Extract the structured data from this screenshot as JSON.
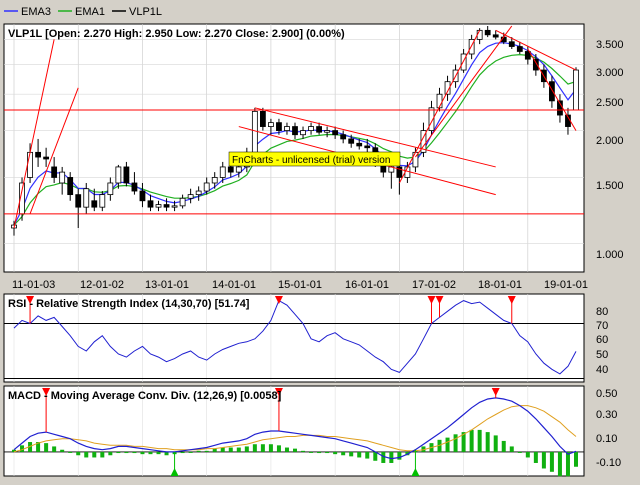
{
  "legend": [
    {
      "label": "EMA3",
      "color": "#3030ff"
    },
    {
      "label": "EMA1",
      "color": "#20b020"
    },
    {
      "label": "VLP1L",
      "color": "#000000"
    }
  ],
  "price_panel": {
    "title": "VLP1L [Open: 2.270  High: 2.950  Low: 2.270  Close: 2.900] (0.00%)",
    "y_ticks": [
      "3.500",
      "3.000",
      "2.500",
      "2.000",
      "1.500",
      "1.000"
    ],
    "x_ticks": [
      "11-01-03",
      "12-01-02",
      "13-01-01",
      "14-01-01",
      "15-01-01",
      "16-01-01",
      "17-01-02",
      "18-01-01",
      "19-01-01"
    ],
    "watermark": "FnCharts - unlicensed (trial) version"
  },
  "rsi_panel": {
    "title": "RSI - Relative Strength Index (14,30,70) [51.74]",
    "y_ticks": [
      "80",
      "70",
      "60",
      "50",
      "40"
    ]
  },
  "macd_panel": {
    "title": "MACD - Moving Average Conv. Div. (12,26,9) [0.0058]",
    "y_ticks": [
      "0.50",
      "0.30",
      "0.10",
      "-0.10"
    ]
  },
  "colors": {
    "ema3": "#3030ff",
    "ema1": "#20b020",
    "trendline": "#ff0000",
    "macd_line": "#2020d0",
    "signal_line": "#e0a020",
    "histogram": "#10b010",
    "rsi_line": "#2020d0",
    "watermark_bg": "#ffff00"
  },
  "chart_data": [
    {
      "type": "candlestick",
      "title": "VLP1L",
      "x": [
        "11-01-03",
        "12-01-02",
        "13-01-01",
        "14-01-01",
        "15-01-01",
        "16-01-01",
        "17-01-02",
        "18-01-01",
        "19-01-01"
      ],
      "ylim": [
        0.85,
        3.8
      ],
      "scale": "log",
      "candles": [
        [
          1.1,
          1.15,
          1.05,
          1.12
        ],
        [
          1.2,
          1.5,
          1.15,
          1.45
        ],
        [
          1.5,
          1.85,
          1.45,
          1.75
        ],
        [
          1.75,
          1.9,
          1.6,
          1.7
        ],
        [
          1.7,
          1.8,
          1.6,
          1.68
        ],
        [
          1.6,
          1.7,
          1.45,
          1.5
        ],
        [
          1.45,
          1.6,
          1.35,
          1.55
        ],
        [
          1.5,
          1.55,
          1.3,
          1.35
        ],
        [
          1.35,
          1.4,
          1.1,
          1.25
        ],
        [
          1.25,
          1.45,
          1.2,
          1.4
        ],
        [
          1.3,
          1.4,
          1.22,
          1.25
        ],
        [
          1.25,
          1.38,
          1.22,
          1.35
        ],
        [
          1.35,
          1.5,
          1.3,
          1.45
        ],
        [
          1.45,
          1.62,
          1.4,
          1.6
        ],
        [
          1.6,
          1.65,
          1.42,
          1.45
        ],
        [
          1.45,
          1.55,
          1.35,
          1.38
        ],
        [
          1.38,
          1.45,
          1.25,
          1.3
        ],
        [
          1.3,
          1.35,
          1.22,
          1.25
        ],
        [
          1.25,
          1.3,
          1.22,
          1.27
        ],
        [
          1.27,
          1.32,
          1.22,
          1.25
        ],
        [
          1.25,
          1.3,
          1.22,
          1.26
        ],
        [
          1.26,
          1.35,
          1.24,
          1.32
        ],
        [
          1.32,
          1.4,
          1.28,
          1.35
        ],
        [
          1.35,
          1.42,
          1.3,
          1.38
        ],
        [
          1.38,
          1.5,
          1.35,
          1.45
        ],
        [
          1.45,
          1.55,
          1.4,
          1.5
        ],
        [
          1.5,
          1.65,
          1.45,
          1.6
        ],
        [
          1.6,
          1.7,
          1.5,
          1.55
        ],
        [
          1.55,
          1.65,
          1.5,
          1.6
        ],
        [
          1.6,
          1.8,
          1.55,
          1.75
        ],
        [
          1.75,
          2.3,
          1.7,
          2.25
        ],
        [
          2.25,
          2.3,
          2.0,
          2.05
        ],
        [
          2.05,
          2.15,
          1.95,
          2.1
        ],
        [
          2.1,
          2.15,
          1.95,
          2.0
        ],
        [
          2.0,
          2.1,
          1.95,
          2.05
        ],
        [
          2.05,
          2.1,
          1.9,
          1.95
        ],
        [
          1.95,
          2.05,
          1.9,
          2.0
        ],
        [
          2.0,
          2.1,
          1.95,
          2.05
        ],
        [
          2.05,
          2.1,
          1.95,
          1.98
        ],
        [
          1.98,
          2.05,
          1.92,
          2.0
        ],
        [
          2.0,
          2.05,
          1.9,
          1.95
        ],
        [
          1.95,
          2.0,
          1.85,
          1.9
        ],
        [
          1.9,
          1.95,
          1.8,
          1.85
        ],
        [
          1.85,
          1.9,
          1.78,
          1.82
        ],
        [
          1.82,
          1.9,
          1.75,
          1.8
        ],
        [
          1.8,
          1.85,
          1.6,
          1.65
        ],
        [
          1.65,
          1.7,
          1.5,
          1.55
        ],
        [
          1.55,
          1.65,
          1.4,
          1.6
        ],
        [
          1.6,
          1.7,
          1.35,
          1.5
        ],
        [
          1.5,
          1.65,
          1.45,
          1.6
        ],
        [
          1.6,
          1.8,
          1.55,
          1.75
        ],
        [
          1.75,
          2.1,
          1.7,
          2.0
        ],
        [
          2.0,
          2.4,
          1.95,
          2.3
        ],
        [
          2.3,
          2.6,
          2.25,
          2.5
        ],
        [
          2.5,
          2.8,
          2.4,
          2.7
        ],
        [
          2.7,
          3.0,
          2.6,
          2.9
        ],
        [
          2.9,
          3.3,
          2.85,
          3.2
        ],
        [
          3.2,
          3.6,
          3.1,
          3.5
        ],
        [
          3.5,
          3.75,
          3.4,
          3.7
        ],
        [
          3.7,
          3.8,
          3.55,
          3.6
        ],
        [
          3.6,
          3.7,
          3.5,
          3.55
        ],
        [
          3.55,
          3.65,
          3.4,
          3.45
        ],
        [
          3.45,
          3.55,
          3.3,
          3.35
        ],
        [
          3.35,
          3.45,
          3.2,
          3.25
        ],
        [
          3.25,
          3.35,
          3.0,
          3.1
        ],
        [
          3.1,
          3.2,
          2.8,
          2.9
        ],
        [
          2.9,
          3.0,
          2.6,
          2.7
        ],
        [
          2.7,
          2.8,
          2.3,
          2.4
        ],
        [
          2.4,
          2.5,
          2.1,
          2.2
        ],
        [
          2.2,
          2.3,
          1.95,
          2.05
        ],
        [
          2.27,
          2.95,
          2.27,
          2.9
        ]
      ]
    },
    {
      "type": "line",
      "title": "RSI - Relative Strength Index (14,30,70) [51.74]",
      "ylim": [
        33,
        88
      ],
      "hline": 70,
      "values": [
        67,
        72,
        70,
        75,
        72,
        74,
        68,
        62,
        55,
        52,
        58,
        62,
        55,
        50,
        48,
        52,
        55,
        50,
        48,
        45,
        47,
        50,
        52,
        48,
        46,
        50,
        53,
        55,
        57,
        58,
        60,
        65,
        72,
        85,
        82,
        76,
        70,
        60,
        58,
        62,
        64,
        60,
        58,
        56,
        52,
        48,
        45,
        40,
        38,
        44,
        50,
        60,
        70,
        74,
        78,
        82,
        85,
        83,
        84,
        80,
        76,
        72,
        70,
        62,
        58,
        50,
        44,
        40,
        37,
        42,
        51.74
      ]
    },
    {
      "type": "line",
      "title": "MACD - Moving Average Conv. Div. (12,26,9) [0.0058]",
      "ylim": [
        -0.2,
        0.58
      ],
      "series": [
        {
          "values": [
            0.02,
            0.08,
            0.14,
            0.17,
            0.18,
            0.16,
            0.14,
            0.12,
            0.08,
            0.05,
            0.03,
            0.02,
            0.03,
            0.05,
            0.05,
            0.04,
            0.03,
            0.02,
            0.01,
            0.0,
            0.0,
            0.01,
            0.02,
            0.03,
            0.04,
            0.06,
            0.08,
            0.09,
            0.1,
            0.12,
            0.16,
            0.18,
            0.19,
            0.19,
            0.18,
            0.17,
            0.16,
            0.15,
            0.14,
            0.13,
            0.12,
            0.1,
            0.08,
            0.06,
            0.04,
            0.0,
            -0.04,
            -0.06,
            -0.05,
            -0.02,
            0.02,
            0.07,
            0.12,
            0.17,
            0.22,
            0.28,
            0.34,
            0.4,
            0.45,
            0.48,
            0.49,
            0.48,
            0.46,
            0.42,
            0.37,
            0.3,
            0.22,
            0.14,
            0.05,
            -0.02,
            0.0058
          ]
        },
        {
          "values": [
            0.0,
            0.02,
            0.05,
            0.08,
            0.1,
            0.11,
            0.12,
            0.12,
            0.11,
            0.1,
            0.08,
            0.07,
            0.06,
            0.06,
            0.06,
            0.05,
            0.05,
            0.04,
            0.03,
            0.03,
            0.02,
            0.02,
            0.02,
            0.02,
            0.03,
            0.03,
            0.04,
            0.05,
            0.06,
            0.07,
            0.09,
            0.11,
            0.12,
            0.13,
            0.14,
            0.14,
            0.15,
            0.15,
            0.15,
            0.14,
            0.14,
            0.13,
            0.12,
            0.11,
            0.1,
            0.08,
            0.06,
            0.04,
            0.02,
            0.01,
            0.01,
            0.02,
            0.04,
            0.06,
            0.09,
            0.12,
            0.16,
            0.2,
            0.25,
            0.3,
            0.34,
            0.38,
            0.41,
            0.42,
            0.42,
            0.4,
            0.37,
            0.32,
            0.27,
            0.2,
            0.14
          ]
        }
      ]
    }
  ]
}
